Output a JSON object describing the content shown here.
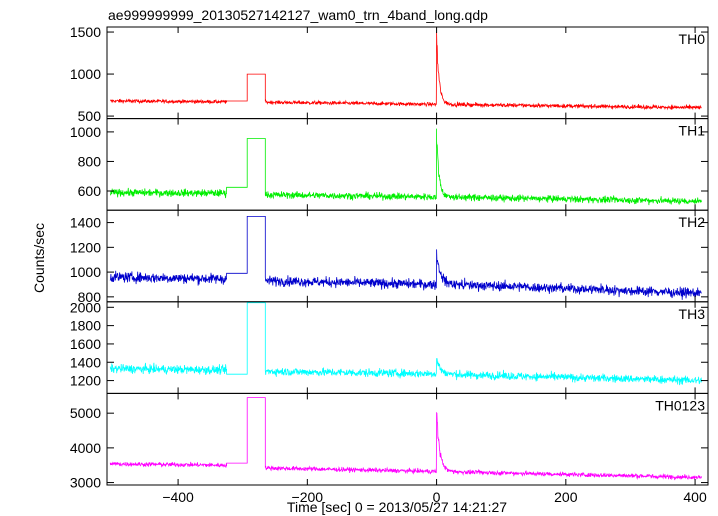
{
  "chart_data": {
    "type": "line",
    "title": "ae999999999_20130527142127_wam0_trn_4band_long.qdp",
    "xlabel": "Time [sec] 0 = 2013/05/27 14:21:27",
    "ylabel": "Counts/sec",
    "xlim": [
      -510,
      420
    ],
    "xticks": [
      -400,
      -200,
      0,
      200,
      400
    ],
    "xtick_labels": [
      "−400",
      "−200",
      "0",
      "200",
      "400"
    ],
    "panels": [
      {
        "name": "TH0",
        "color": "#ff0000",
        "ylim": [
          470,
          1560
        ],
        "yticks": [
          500,
          1000,
          1500
        ],
        "segments": [
          {
            "x": [
              -505,
              -325
            ],
            "y": [
              680,
              670
            ],
            "noise": 20
          },
          {
            "x": [
              -325,
              -293
            ],
            "y": [
              680,
              680
            ],
            "noise": 0
          },
          {
            "x": [
              -293,
              -265
            ],
            "y": [
              1000,
              1000
            ],
            "noise": 0
          },
          {
            "x": [
              -265,
              0
            ],
            "y": [
              665,
              640
            ],
            "noise": 20
          },
          {
            "x": [
              0,
              410
            ],
            "y": [
              640,
              600
            ],
            "noise": 22
          }
        ],
        "burst": {
          "t0": 0,
          "peak": 1560,
          "decay": 4
        }
      },
      {
        "name": "TH1",
        "color": "#00ee00",
        "ylim": [
          470,
          1090
        ],
        "yticks": [
          600,
          800,
          1000
        ],
        "segments": [
          {
            "x": [
              -505,
              -325
            ],
            "y": [
              590,
              585
            ],
            "noise": 24
          },
          {
            "x": [
              -325,
              -293
            ],
            "y": [
              625,
              625
            ],
            "noise": 0
          },
          {
            "x": [
              -293,
              -265
            ],
            "y": [
              955,
              955
            ],
            "noise": 0
          },
          {
            "x": [
              -265,
              0
            ],
            "y": [
              575,
              560
            ],
            "noise": 22
          },
          {
            "x": [
              0,
              410
            ],
            "y": [
              560,
              530
            ],
            "noise": 22
          }
        ],
        "burst": {
          "t0": 0,
          "peak": 1030,
          "decay": 4
        }
      },
      {
        "name": "TH2",
        "color": "#0000cc",
        "ylim": [
          760,
          1500
        ],
        "yticks": [
          800,
          1000,
          1200,
          1400
        ],
        "segments": [
          {
            "x": [
              -505,
              -325
            ],
            "y": [
              960,
              945
            ],
            "noise": 40
          },
          {
            "x": [
              -325,
              -293
            ],
            "y": [
              990,
              990
            ],
            "noise": 0
          },
          {
            "x": [
              -293,
              -265
            ],
            "y": [
              1450,
              1450
            ],
            "noise": 0
          },
          {
            "x": [
              -265,
              0
            ],
            "y": [
              930,
              900
            ],
            "noise": 38
          },
          {
            "x": [
              0,
              410
            ],
            "y": [
              905,
              830
            ],
            "noise": 38
          }
        ],
        "burst": {
          "t0": 0,
          "peak": 1185,
          "decay": 6
        }
      },
      {
        "name": "TH3",
        "color": "#00ffff",
        "ylim": [
          1060,
          2060
        ],
        "yticks": [
          1200,
          1400,
          1600,
          1800,
          2000
        ],
        "segments": [
          {
            "x": [
              -505,
              -325
            ],
            "y": [
              1330,
              1315
            ],
            "noise": 45
          },
          {
            "x": [
              -325,
              -293
            ],
            "y": [
              1270,
              1270
            ],
            "noise": 0
          },
          {
            "x": [
              -293,
              -265
            ],
            "y": [
              2050,
              2050
            ],
            "noise": 0
          },
          {
            "x": [
              -265,
              0
            ],
            "y": [
              1300,
              1275
            ],
            "noise": 42
          },
          {
            "x": [
              0,
              410
            ],
            "y": [
              1270,
              1200
            ],
            "noise": 42
          }
        ],
        "burst": {
          "t0": 0,
          "peak": 1470,
          "decay": 6
        }
      },
      {
        "name": "TH0123",
        "color": "#ff00ff",
        "ylim": [
          2930,
          5570
        ],
        "yticks": [
          3000,
          4000,
          5000
        ],
        "segments": [
          {
            "x": [
              -505,
              -325
            ],
            "y": [
              3540,
              3500
            ],
            "noise": 60
          },
          {
            "x": [
              -325,
              -293
            ],
            "y": [
              3560,
              3560
            ],
            "noise": 0
          },
          {
            "x": [
              -293,
              -265
            ],
            "y": [
              5450,
              5450
            ],
            "noise": 0
          },
          {
            "x": [
              -265,
              0
            ],
            "y": [
              3420,
              3320
            ],
            "noise": 60
          },
          {
            "x": [
              0,
              410
            ],
            "y": [
              3320,
              3150
            ],
            "noise": 60
          }
        ],
        "burst": {
          "t0": 0,
          "peak": 5250,
          "decay": 5
        }
      }
    ]
  }
}
